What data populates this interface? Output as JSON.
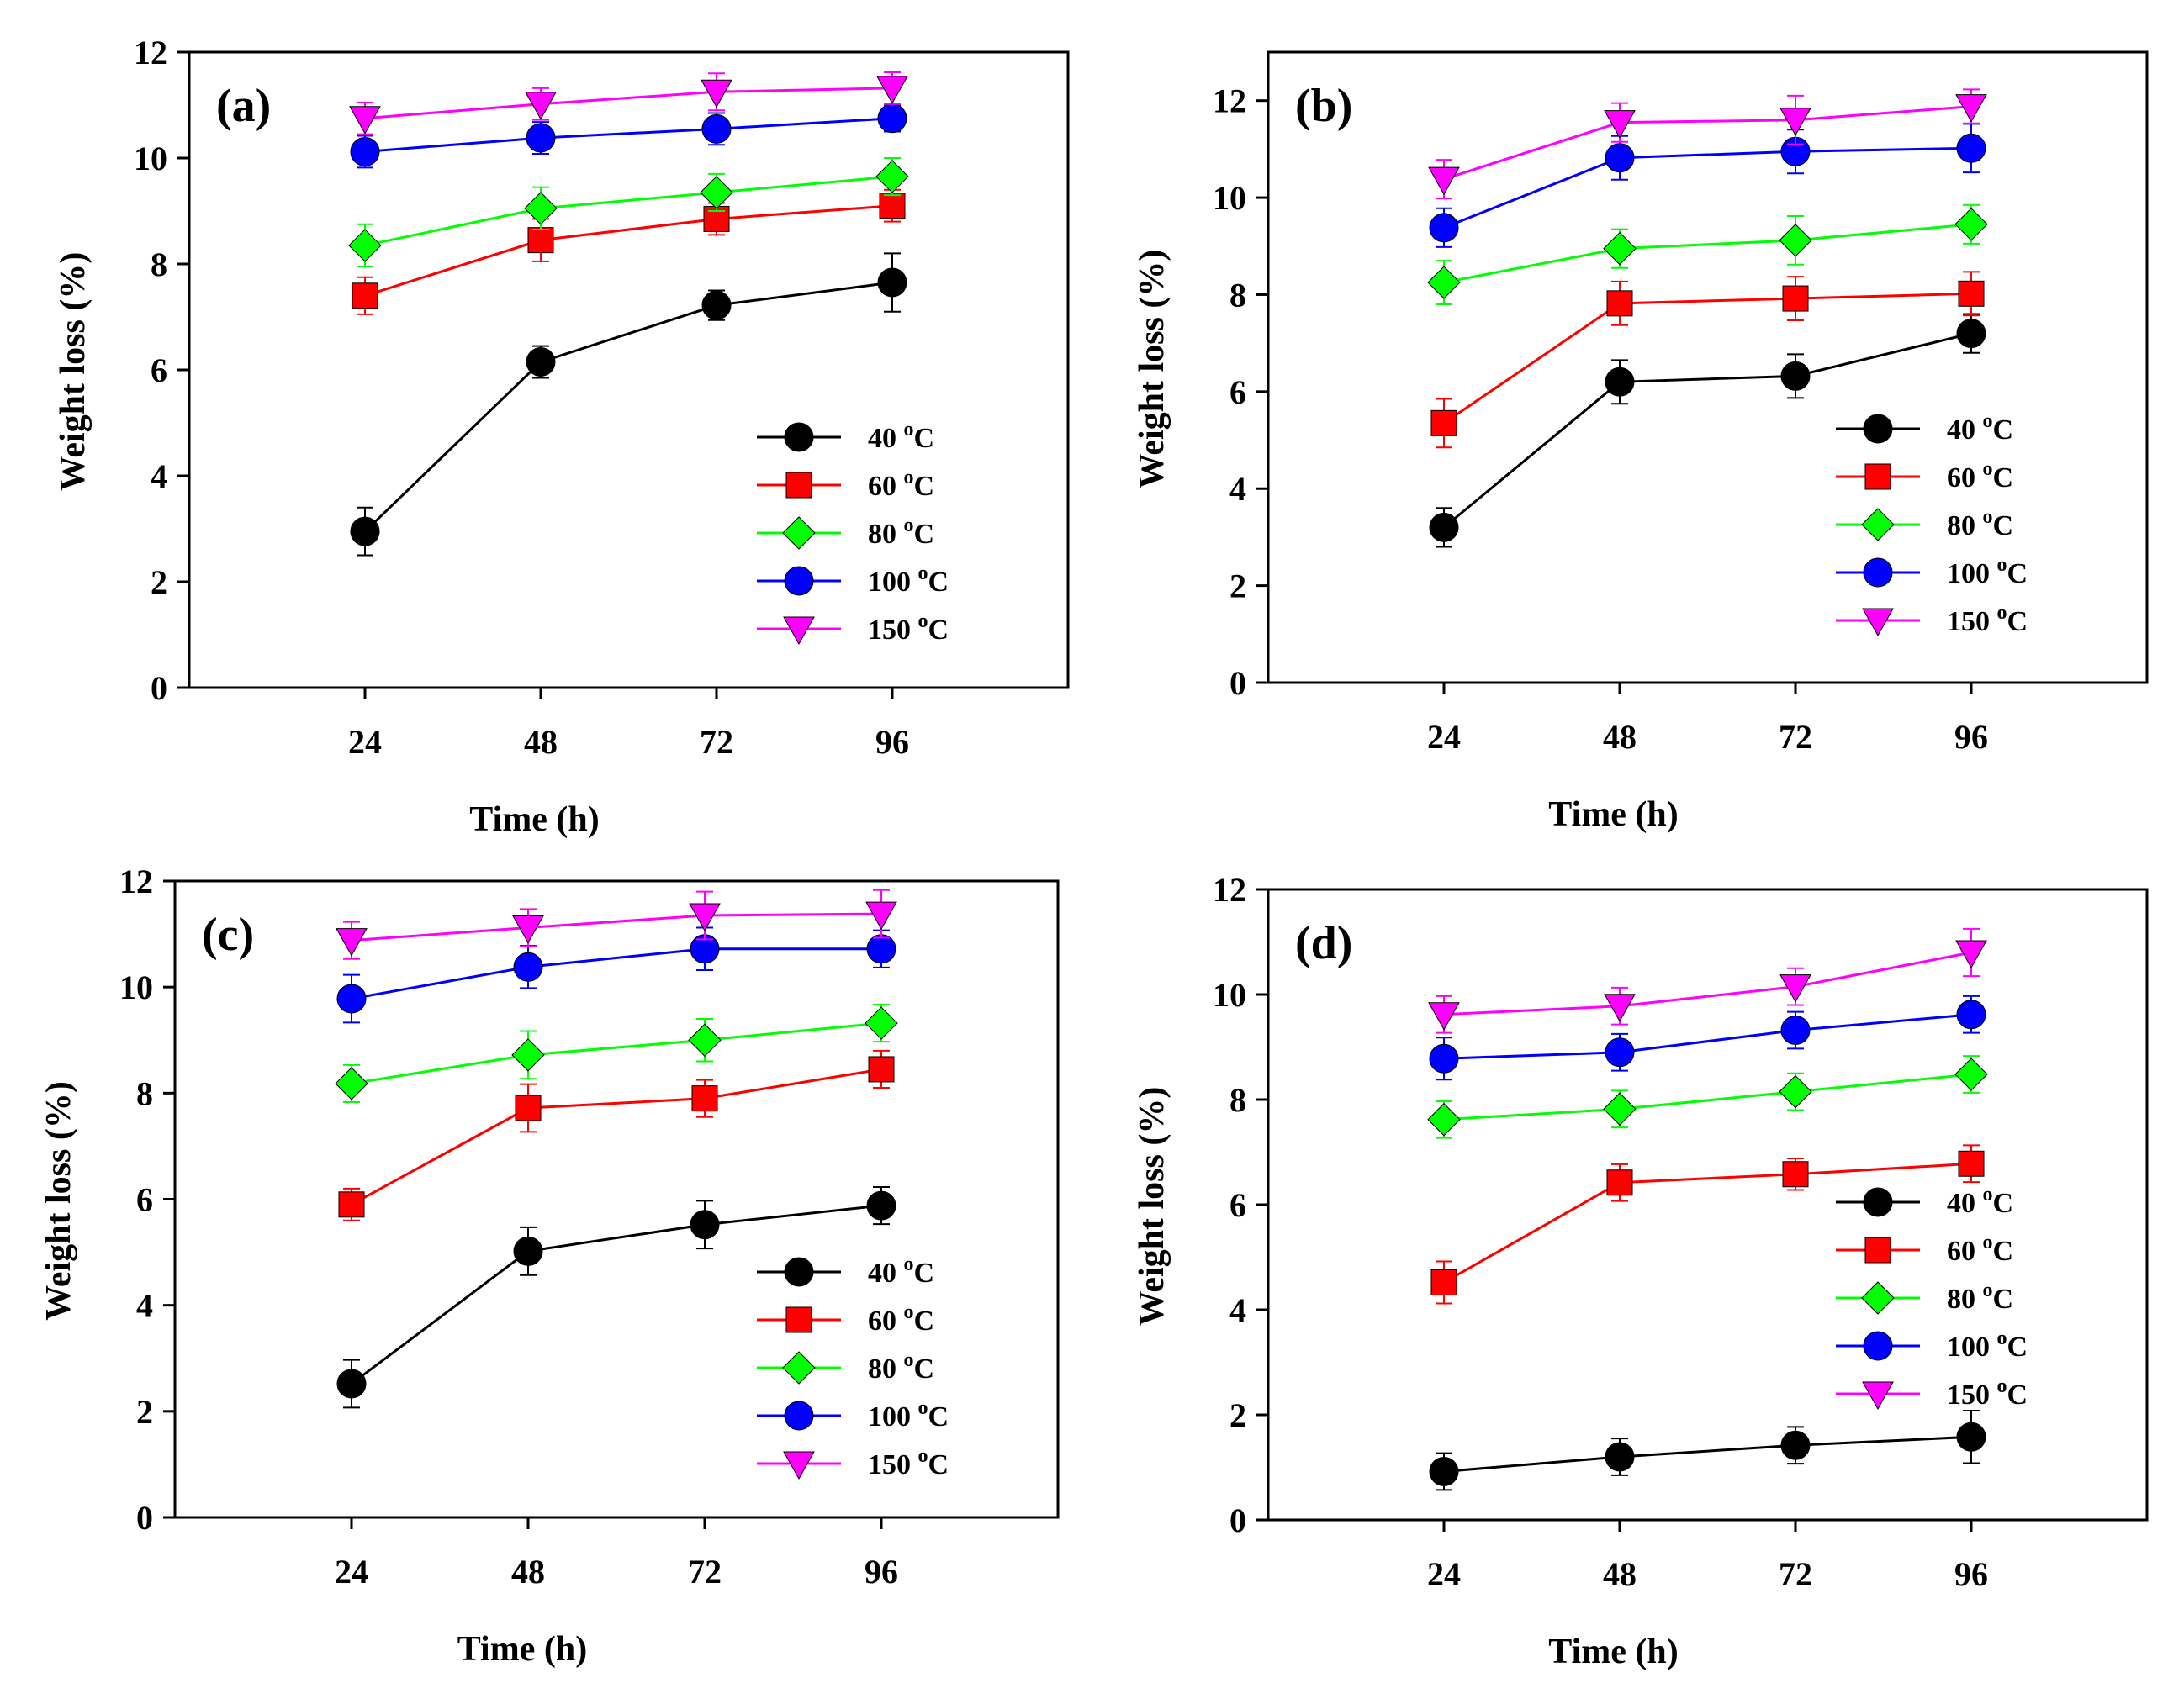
{
  "figure": {
    "y_label": "Weight loss (%)",
    "x_label": "Time (h)",
    "colors": {
      "s40": "#000000",
      "s60": "#ff0000",
      "s80": "#00ff00",
      "s100": "#0000ff",
      "s150": "#ff00ff"
    }
  },
  "chart_data": [
    {
      "type": "line",
      "title": "(a)",
      "xlabel": "Time (h)",
      "ylabel": "Weight loss (%)",
      "x": [
        24,
        48,
        72,
        96
      ],
      "ylim": [
        0,
        12
      ],
      "yticks": [
        0,
        2,
        4,
        6,
        8,
        10,
        12
      ],
      "legend_position": "lower-right",
      "series": [
        {
          "name": "40",
          "unit": "oC",
          "marker": "circle",
          "color": "#000000",
          "values": [
            2.95,
            6.15,
            7.22,
            7.65
          ],
          "errors": [
            0.45,
            0.3,
            0.28,
            0.55
          ]
        },
        {
          "name": "60",
          "unit": "oC",
          "marker": "square",
          "color": "#ff0000",
          "values": [
            7.4,
            8.45,
            8.85,
            9.1
          ],
          "errors": [
            0.35,
            0.4,
            0.3,
            0.3
          ]
        },
        {
          "name": "80",
          "unit": "oC",
          "marker": "diamond",
          "color": "#00ff00",
          "values": [
            8.35,
            9.05,
            9.35,
            9.65
          ],
          "errors": [
            0.4,
            0.4,
            0.35,
            0.35
          ]
        },
        {
          "name": "100",
          "unit": "oC",
          "marker": "circle",
          "color": "#0000ff",
          "values": [
            10.12,
            10.38,
            10.55,
            10.75
          ],
          "errors": [
            0.3,
            0.3,
            0.3,
            0.25
          ]
        },
        {
          "name": "150",
          "unit": "oC",
          "marker": "triangle-down",
          "color": "#ff00ff",
          "values": [
            10.75,
            11.02,
            11.25,
            11.32
          ],
          "errors": [
            0.3,
            0.3,
            0.35,
            0.3
          ]
        }
      ]
    },
    {
      "type": "line",
      "title": "(b)",
      "xlabel": "Time (h)",
      "ylabel": "Weight loss (%)",
      "x": [
        24,
        48,
        72,
        96
      ],
      "ylim": [
        0,
        13
      ],
      "yticks": [
        0,
        2,
        4,
        6,
        8,
        10,
        12
      ],
      "legend_position": "lower-right",
      "series": [
        {
          "name": "40",
          "unit": "oC",
          "marker": "circle",
          "color": "#000000",
          "values": [
            3.2,
            6.2,
            6.32,
            7.2
          ],
          "errors": [
            0.4,
            0.45,
            0.45,
            0.4
          ]
        },
        {
          "name": "60",
          "unit": "oC",
          "marker": "square",
          "color": "#ff0000",
          "values": [
            5.35,
            7.82,
            7.92,
            8.02
          ],
          "errors": [
            0.5,
            0.45,
            0.45,
            0.45
          ]
        },
        {
          "name": "80",
          "unit": "oC",
          "marker": "diamond",
          "color": "#00ff00",
          "values": [
            8.25,
            8.95,
            9.12,
            9.45
          ],
          "errors": [
            0.45,
            0.4,
            0.5,
            0.4
          ]
        },
        {
          "name": "100",
          "unit": "oC",
          "marker": "circle",
          "color": "#0000ff",
          "values": [
            9.38,
            10.82,
            10.95,
            11.02
          ],
          "errors": [
            0.4,
            0.45,
            0.45,
            0.5
          ]
        },
        {
          "name": "150",
          "unit": "oC",
          "marker": "triangle-down",
          "color": "#ff00ff",
          "values": [
            10.38,
            11.55,
            11.6,
            11.88
          ],
          "errors": [
            0.4,
            0.4,
            0.5,
            0.35
          ]
        }
      ]
    },
    {
      "type": "line",
      "title": "(c)",
      "xlabel": "Time (h)",
      "ylabel": "Weight loss (%)",
      "x": [
        24,
        48,
        72,
        96
      ],
      "ylim": [
        0,
        12
      ],
      "yticks": [
        0,
        2,
        4,
        6,
        8,
        10,
        12
      ],
      "legend_position": "lower-right",
      "series": [
        {
          "name": "40",
          "unit": "oC",
          "marker": "circle",
          "color": "#000000",
          "values": [
            2.52,
            5.02,
            5.52,
            5.88
          ],
          "errors": [
            0.45,
            0.45,
            0.45,
            0.35
          ]
        },
        {
          "name": "60",
          "unit": "oC",
          "marker": "square",
          "color": "#ff0000",
          "values": [
            5.9,
            7.72,
            7.9,
            8.45
          ],
          "errors": [
            0.3,
            0.45,
            0.35,
            0.35
          ]
        },
        {
          "name": "80",
          "unit": "oC",
          "marker": "diamond",
          "color": "#00ff00",
          "values": [
            8.18,
            8.72,
            9.0,
            9.32
          ],
          "errors": [
            0.35,
            0.45,
            0.4,
            0.35
          ]
        },
        {
          "name": "100",
          "unit": "oC",
          "marker": "circle",
          "color": "#0000ff",
          "values": [
            9.78,
            10.38,
            10.72,
            10.72
          ],
          "errors": [
            0.45,
            0.4,
            0.4,
            0.35
          ]
        },
        {
          "name": "150",
          "unit": "oC",
          "marker": "triangle-down",
          "color": "#ff00ff",
          "values": [
            10.88,
            11.12,
            11.35,
            11.38
          ],
          "errors": [
            0.35,
            0.35,
            0.45,
            0.45
          ]
        }
      ]
    },
    {
      "type": "line",
      "title": "(d)",
      "xlabel": "Time (h)",
      "ylabel": "Weight loss (%)",
      "x": [
        24,
        48,
        72,
        96
      ],
      "ylim": [
        0,
        12
      ],
      "yticks": [
        0,
        2,
        4,
        6,
        8,
        10,
        12
      ],
      "legend_position": "lower-right",
      "series": [
        {
          "name": "40",
          "unit": "oC",
          "marker": "circle",
          "color": "#000000",
          "values": [
            0.92,
            1.2,
            1.42,
            1.58
          ],
          "errors": [
            0.35,
            0.35,
            0.35,
            0.5
          ]
        },
        {
          "name": "60",
          "unit": "oC",
          "marker": "square",
          "color": "#ff0000",
          "values": [
            4.52,
            6.42,
            6.58,
            6.78
          ],
          "errors": [
            0.4,
            0.35,
            0.3,
            0.35
          ]
        },
        {
          "name": "80",
          "unit": "oC",
          "marker": "diamond",
          "color": "#00ff00",
          "values": [
            7.62,
            7.82,
            8.15,
            8.48
          ],
          "errors": [
            0.35,
            0.35,
            0.35,
            0.35
          ]
        },
        {
          "name": "100",
          "unit": "oC",
          "marker": "circle",
          "color": "#0000ff",
          "values": [
            8.78,
            8.9,
            9.32,
            9.62
          ],
          "errors": [
            0.4,
            0.35,
            0.35,
            0.35
          ]
        },
        {
          "name": "150",
          "unit": "oC",
          "marker": "triangle-down",
          "color": "#ff00ff",
          "values": [
            9.62,
            9.78,
            10.15,
            10.8
          ],
          "errors": [
            0.35,
            0.35,
            0.35,
            0.45
          ]
        }
      ]
    }
  ]
}
